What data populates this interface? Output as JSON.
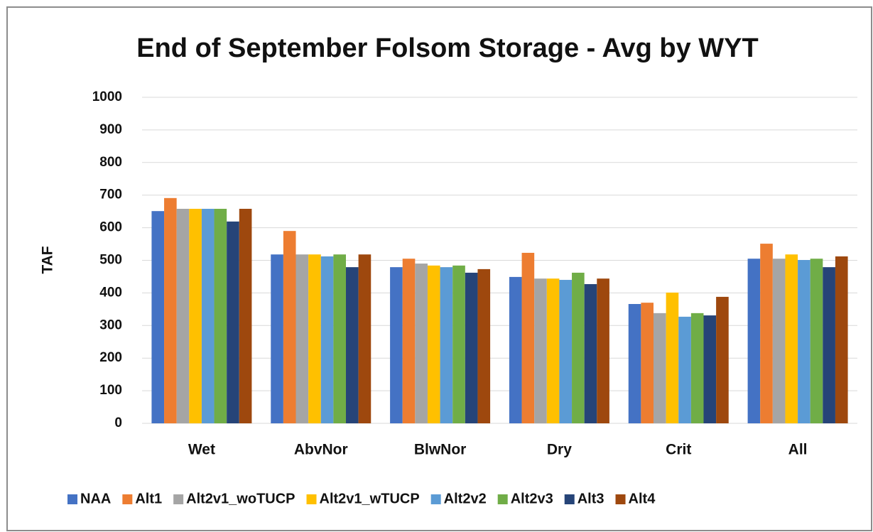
{
  "chart_data": {
    "type": "bar",
    "title": "End of September Folsom Storage - Avg by WYT",
    "y_label": "TAF",
    "categories": [
      "Wet",
      "AbvNor",
      "BlwNor",
      "Dry",
      "Crit",
      "All"
    ],
    "series": [
      {
        "name": "NAA",
        "color": "#4472c4",
        "values": [
          651,
          518,
          479,
          449,
          366,
          505
        ]
      },
      {
        "name": "Alt1",
        "color": "#ed7d31",
        "values": [
          691,
          590,
          505,
          523,
          370,
          551
        ]
      },
      {
        "name": "Alt2v1_woTUCP",
        "color": "#a5a5a5",
        "values": [
          658,
          518,
          490,
          444,
          338,
          505
        ]
      },
      {
        "name": "Alt2v1_wTUCP",
        "color": "#ffc000",
        "values": [
          658,
          518,
          484,
          444,
          401,
          518
        ]
      },
      {
        "name": "Alt2v2",
        "color": "#5b9bd5",
        "values": [
          658,
          512,
          479,
          440,
          327,
          501
        ]
      },
      {
        "name": "Alt2v3",
        "color": "#70ad47",
        "values": [
          658,
          518,
          484,
          462,
          338,
          505
        ]
      },
      {
        "name": "Alt3",
        "color": "#264478",
        "values": [
          619,
          479,
          462,
          427,
          331,
          479
        ]
      },
      {
        "name": "Alt4",
        "color": "#9e480e",
        "values": [
          658,
          518,
          473,
          444,
          388,
          512
        ]
      }
    ],
    "ylim": [
      0,
      1000
    ],
    "yticks": [
      0,
      100,
      200,
      300,
      400,
      500,
      600,
      700,
      800,
      900,
      1000
    ],
    "grid": true,
    "legend": "bottom"
  }
}
